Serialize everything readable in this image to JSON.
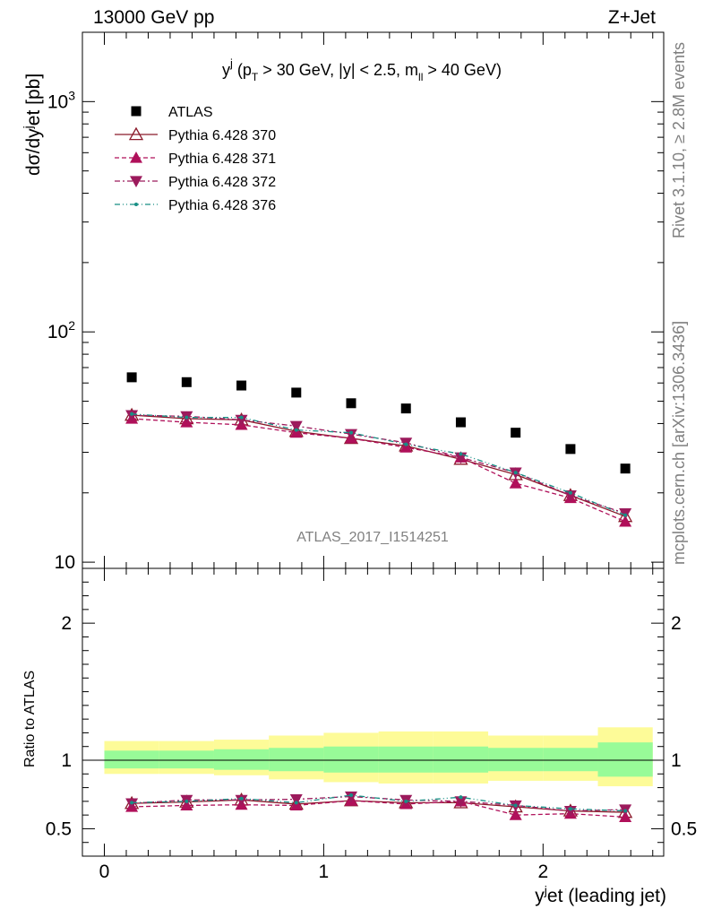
{
  "header": {
    "left": "13000 GeV pp",
    "right": "Z+Jet"
  },
  "side_labels": {
    "rivet": "Rivet 3.1.10, ≥ 2.8M events",
    "mcplots": "mcplots.cern.ch [arXiv:1306.3436]"
  },
  "watermark": "ATLAS_2017_I1514251",
  "plot_title": "y^j (p_T > 30 GeV, |y| < 2.5, m_ll > 40 GeV)",
  "chart_data": [
    {
      "type": "scatter",
      "panel": "main",
      "ylabel": "dσ/dy^jet [pb]",
      "yscale": "log",
      "ylim": [
        9.4,
        2000
      ],
      "xlim": [
        -0.1,
        2.55
      ],
      "y_tick_labels": [
        "10",
        "10^2",
        "10^3"
      ],
      "x": [
        0.125,
        0.375,
        0.625,
        0.875,
        1.125,
        1.375,
        1.625,
        1.875,
        2.125,
        2.375
      ],
      "series": [
        {
          "name": "ATLAS",
          "color": "#000000",
          "values": [
            63.5,
            60.5,
            58.5,
            54.5,
            49.0,
            46.5,
            40.5,
            36.5,
            31.0,
            25.5
          ]
        },
        {
          "name": "Pythia 6.428 370",
          "color": "#8b1a2b",
          "values": [
            43.5,
            42.0,
            41.5,
            37.0,
            34.5,
            32.0,
            28.0,
            24.0,
            19.5,
            15.8
          ]
        },
        {
          "name": "Pythia 6.428 371",
          "color": "#b0105a",
          "values": [
            42.0,
            40.5,
            39.5,
            36.5,
            34.5,
            31.5,
            28.5,
            22.0,
            19.0,
            15.0
          ]
        },
        {
          "name": "Pythia 6.428 372",
          "color": "#9c1a5c",
          "values": [
            43.5,
            43.0,
            41.5,
            39.0,
            36.0,
            33.0,
            28.5,
            24.5,
            19.5,
            16.3
          ]
        },
        {
          "name": "Pythia 6.428 376",
          "color": "#178f85",
          "values": [
            44.0,
            42.5,
            42.5,
            37.5,
            36.5,
            32.5,
            29.5,
            24.5,
            20.0,
            16.0
          ]
        }
      ]
    },
    {
      "type": "scatter",
      "panel": "ratio",
      "ylabel": "Ratio to ATLAS",
      "ylim": [
        0.3,
        2.4
      ],
      "xlim": [
        -0.1,
        2.55
      ],
      "xlabel": "y^jet (leading jet)",
      "x_tick_labels": [
        "0",
        "1",
        "2"
      ],
      "y_tick_labels": [
        "0.5",
        "1",
        "2"
      ],
      "bands": {
        "x_edges": [
          0.0,
          0.25,
          0.5,
          0.75,
          1.0,
          1.25,
          1.5,
          1.75,
          2.0,
          2.25,
          2.5
        ],
        "green_lo": [
          0.94,
          0.94,
          0.93,
          0.92,
          0.91,
          0.91,
          0.91,
          0.92,
          0.92,
          0.88
        ],
        "green_hi": [
          1.07,
          1.07,
          1.08,
          1.09,
          1.1,
          1.1,
          1.1,
          1.09,
          1.09,
          1.13
        ],
        "yellow_lo": [
          0.9,
          0.9,
          0.89,
          0.86,
          0.84,
          0.83,
          0.83,
          0.85,
          0.85,
          0.81
        ],
        "yellow_hi": [
          1.14,
          1.14,
          1.15,
          1.18,
          1.2,
          1.21,
          1.21,
          1.18,
          1.18,
          1.24
        ]
      },
      "x": [
        0.125,
        0.375,
        0.625,
        0.875,
        1.125,
        1.375,
        1.625,
        1.875,
        2.125,
        2.375
      ],
      "series": [
        {
          "name": "Pythia 6.428 370",
          "color": "#8b1a2b",
          "values": [
            0.685,
            0.695,
            0.71,
            0.68,
            0.705,
            0.69,
            0.69,
            0.66,
            0.63,
            0.62
          ]
        },
        {
          "name": "Pythia 6.428 371",
          "color": "#b0105a",
          "values": [
            0.66,
            0.67,
            0.675,
            0.67,
            0.705,
            0.68,
            0.7,
            0.6,
            0.61,
            0.585
          ]
        },
        {
          "name": "Pythia 6.428 372",
          "color": "#9c1a5c",
          "values": [
            0.685,
            0.71,
            0.71,
            0.715,
            0.735,
            0.71,
            0.7,
            0.67,
            0.63,
            0.64
          ]
        },
        {
          "name": "Pythia 6.428 376",
          "color": "#178f85",
          "values": [
            0.69,
            0.7,
            0.72,
            0.69,
            0.745,
            0.7,
            0.73,
            0.67,
            0.645,
            0.63
          ]
        }
      ]
    }
  ]
}
